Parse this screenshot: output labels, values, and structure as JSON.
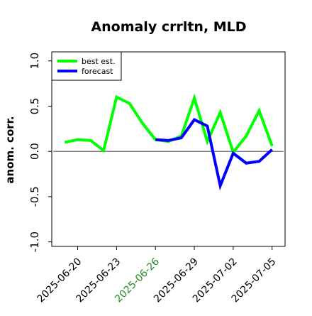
{
  "chart_data": {
    "type": "line",
    "title": "Anomaly crrltn, MLD",
    "xlabel": "",
    "ylabel": "anom. corr.",
    "ylim": [
      -1.05,
      1.1
    ],
    "yticks": [
      -1.0,
      -0.5,
      0.0,
      0.5,
      1.0
    ],
    "ytick_labels": [
      "-1.0",
      "-0.5",
      "0.0",
      "0.5",
      "1.0"
    ],
    "x_dates": [
      "2025-06-19",
      "2025-06-20",
      "2025-06-21",
      "2025-06-22",
      "2025-06-23",
      "2025-06-24",
      "2025-06-25",
      "2025-06-26",
      "2025-06-27",
      "2025-06-28",
      "2025-06-29",
      "2025-06-30",
      "2025-07-01",
      "2025-07-02",
      "2025-07-03",
      "2025-07-04",
      "2025-07-05"
    ],
    "xlim": [
      "2025-06-18",
      "2025-07-06"
    ],
    "xticks": [
      "2025-06-20",
      "2025-06-23",
      "2025-06-26",
      "2025-06-29",
      "2025-07-02",
      "2025-07-05"
    ],
    "highlight_tick": "2025-06-26",
    "highlight_color": "#228B22",
    "series": [
      {
        "name": "best est.",
        "color": "#00ff00",
        "values": [
          0.1,
          0.13,
          0.12,
          0.01,
          0.6,
          0.53,
          0.31,
          0.13,
          0.11,
          0.17,
          0.59,
          0.11,
          0.43,
          -0.01,
          0.17,
          0.45,
          0.06
        ]
      },
      {
        "name": "forecast",
        "color": "#0000ff",
        "values": [
          null,
          null,
          null,
          null,
          null,
          null,
          null,
          0.13,
          0.12,
          0.15,
          0.35,
          0.28,
          -0.38,
          -0.02,
          -0.13,
          -0.11,
          0.02
        ]
      }
    ],
    "hline": 0.0,
    "legend_position": "top-left",
    "grid": false
  }
}
